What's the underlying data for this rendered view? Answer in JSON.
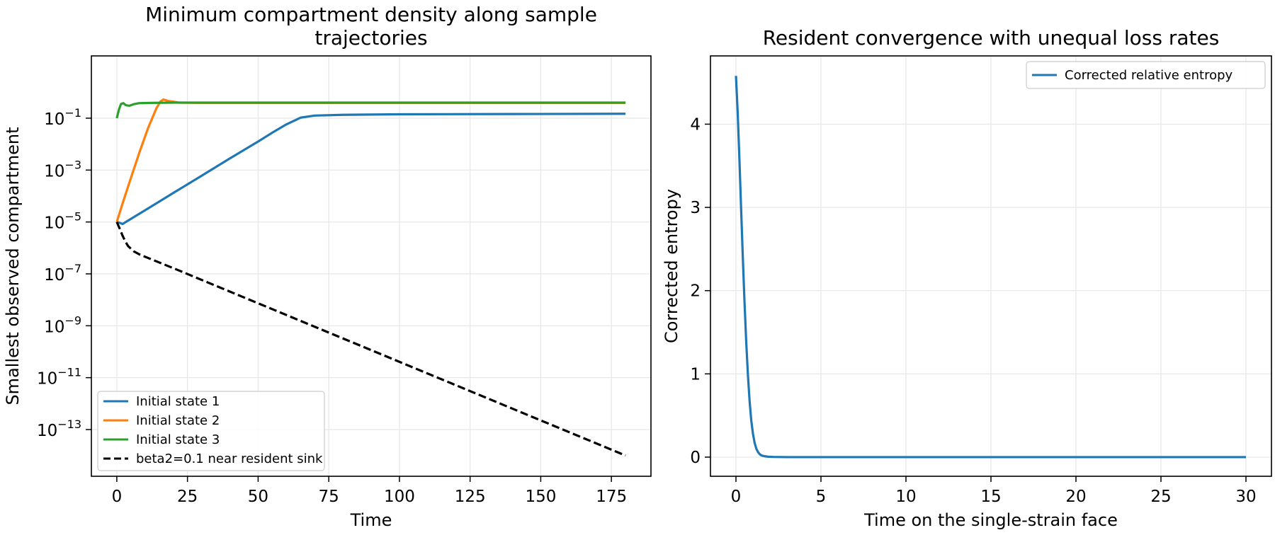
{
  "chart_data": [
    {
      "type": "line",
      "title_lines": [
        "Minimum compartment density along sample",
        "trajectories"
      ],
      "xlabel": "Time",
      "ylabel": "Smallest observed compartment",
      "xlim": [
        -9,
        189
      ],
      "ylim_log10": [
        -14.8,
        1.4
      ],
      "yscale": "log",
      "grid": true,
      "legend_position": "lower-left",
      "x_ticks": [
        0,
        25,
        50,
        75,
        100,
        125,
        150,
        175
      ],
      "x_tick_labels": [
        "0",
        "25",
        "50",
        "75",
        "100",
        "125",
        "150",
        "175"
      ],
      "y_ticks_log10": [
        -1,
        -3,
        -5,
        -7,
        -9,
        -11,
        -13
      ],
      "y_tick_labels": [
        "10",
        "10",
        "10",
        "10",
        "10",
        "10",
        "10"
      ],
      "y_tick_exponents": [
        "−1",
        "−3",
        "−5",
        "−7",
        "−9",
        "−11",
        "−13"
      ],
      "series": [
        {
          "name": "Initial state 1",
          "color": "#1f77b4",
          "dash": "solid",
          "x": [
            0,
            1,
            2,
            5,
            10,
            20,
            30,
            40,
            50,
            55,
            60,
            65,
            70,
            80,
            100,
            140,
            180
          ],
          "y_log10": [
            -5.0,
            -5.03,
            -5.08,
            -4.88,
            -4.55,
            -3.88,
            -3.22,
            -2.55,
            -1.9,
            -1.56,
            -1.24,
            -0.98,
            -0.9,
            -0.87,
            -0.85,
            -0.84,
            -0.83
          ]
        },
        {
          "name": "Initial state 2",
          "color": "#ff7f0e",
          "dash": "solid",
          "x": [
            0,
            2,
            5,
            8,
            11,
            14,
            15.5,
            16.5,
            18,
            22,
            30,
            60,
            180
          ],
          "y_log10": [
            -5.0,
            -4.3,
            -3.3,
            -2.32,
            -1.4,
            -0.62,
            -0.35,
            -0.28,
            -0.33,
            -0.4,
            -0.41,
            -0.41,
            -0.41
          ]
        },
        {
          "name": "Initial state 3",
          "color": "#2ca02c",
          "dash": "solid",
          "x": [
            0,
            0.8,
            1.5,
            2.3,
            3.2,
            4.5,
            6,
            8,
            12,
            20,
            40,
            80,
            180
          ],
          "y_log10": [
            -1.0,
            -0.65,
            -0.45,
            -0.42,
            -0.5,
            -0.52,
            -0.46,
            -0.42,
            -0.41,
            -0.4,
            -0.4,
            -0.4,
            -0.4
          ]
        },
        {
          "name": "beta2=0.1 near resident sink",
          "color": "#000000",
          "dash": "dashed",
          "x": [
            0,
            1,
            2,
            3,
            4,
            6,
            8,
            10,
            20,
            180
          ],
          "y_log10": [
            -5.0,
            -5.25,
            -5.52,
            -5.75,
            -5.93,
            -6.13,
            -6.25,
            -6.34,
            -6.78,
            -14.0
          ]
        }
      ]
    },
    {
      "type": "line",
      "title_lines": [
        "Resident convergence with unequal loss rates"
      ],
      "xlabel": "Time on the single-strain face",
      "ylabel": "Corrected entropy",
      "xlim": [
        -1.5,
        31.5
      ],
      "ylim": [
        -0.23,
        4.82
      ],
      "grid": true,
      "legend_position": "upper-right",
      "x_ticks": [
        0,
        5,
        10,
        15,
        20,
        25,
        30
      ],
      "x_tick_labels": [
        "0",
        "5",
        "10",
        "15",
        "20",
        "25",
        "30"
      ],
      "y_ticks": [
        0,
        1,
        2,
        3,
        4
      ],
      "y_tick_labels": [
        "0",
        "1",
        "2",
        "3",
        "4"
      ],
      "series": [
        {
          "name": "Corrected relative entropy",
          "color": "#1f77b4",
          "dash": "solid",
          "x": [
            0,
            0.1,
            0.2,
            0.3,
            0.4,
            0.5,
            0.6,
            0.7,
            0.8,
            0.9,
            1.0,
            1.1,
            1.2,
            1.3,
            1.4,
            1.5,
            1.7,
            1.9,
            2.2,
            2.6,
            3,
            5,
            10,
            20,
            30
          ],
          "y": [
            4.58,
            4.15,
            3.6,
            3.0,
            2.42,
            1.88,
            1.4,
            1.0,
            0.68,
            0.44,
            0.28,
            0.17,
            0.1,
            0.06,
            0.035,
            0.02,
            0.01,
            0.005,
            0.002,
            0.001,
            0.0,
            0.0,
            0.0,
            0.0,
            0.0
          ]
        }
      ]
    }
  ]
}
